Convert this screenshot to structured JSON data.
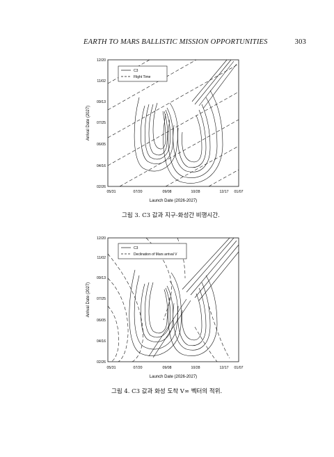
{
  "header": {
    "running_title": "EARTH TO MARS BALLISTIC MISSION OPPORTUNITIES",
    "page_number": "303"
  },
  "figures": [
    {
      "caption": "그림 3. C3 값과 지구-화성간 비행시간.",
      "xlabel": "Launch Date (2026-2027)",
      "ylabel": "Arrival Date (2027)",
      "x_ticks": [
        "05/31",
        "07/20",
        "09/08",
        "10/28",
        "12/17",
        "01/07"
      ],
      "y_ticks": [
        "12/20",
        "11/02",
        "09/13",
        "07/25",
        "06/05",
        "04/16",
        "02/26"
      ],
      "legend": [
        "C3",
        "Flight Time"
      ]
    },
    {
      "caption": "그림 4. C3 값과 화성 도착 V∞ 벡터의 적위.",
      "xlabel": "Launch Date (2026-2027)",
      "ylabel": "Arrival Date (2027)",
      "x_ticks": [
        "05/31",
        "07/20",
        "09/08",
        "10/28",
        "12/17",
        "01/07"
      ],
      "y_ticks": [
        "12/20",
        "11/02",
        "09/13",
        "07/25",
        "06/05",
        "04/16",
        "02/26"
      ],
      "legend": [
        "C3",
        "Declination of Mars arrival V"
      ]
    }
  ]
}
